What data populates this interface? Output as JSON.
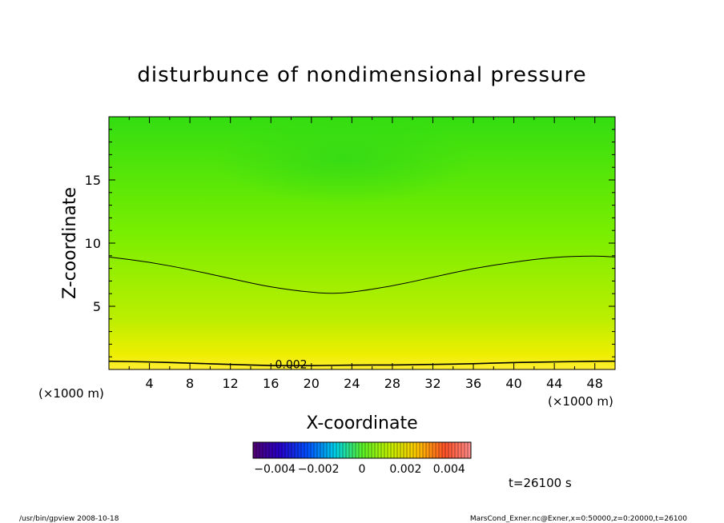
{
  "chart_data": {
    "type": "heatmap",
    "title": "disturbunce of nondimensional pressure",
    "xlabel": "X-coordinate",
    "ylabel": "Z-coordinate",
    "x_unit_left": "(×1000 m)",
    "x_unit_right": "(×1000 m)",
    "xlim": [
      0,
      50
    ],
    "ylim": [
      0,
      20
    ],
    "x_ticks": [
      4,
      8,
      12,
      16,
      20,
      24,
      28,
      32,
      36,
      40,
      44,
      48
    ],
    "x_tick_labels": [
      "4",
      "8",
      "12",
      "16",
      "20",
      "24",
      "28",
      "32",
      "36",
      "40",
      "44",
      "48"
    ],
    "y_ticks": [
      5,
      10,
      15
    ],
    "y_tick_labels": [
      "5",
      "10",
      "15"
    ],
    "contours": [
      {
        "label": "",
        "x": [
          0,
          4,
          8,
          12,
          16,
          20,
          22,
          24,
          28,
          32,
          36,
          40,
          44,
          48,
          50
        ],
        "z": [
          8.9,
          8.5,
          7.9,
          7.2,
          6.5,
          6.1,
          6.0,
          6.1,
          6.6,
          7.3,
          8.0,
          8.5,
          8.9,
          9.0,
          8.9
        ]
      },
      {
        "label": "0.002",
        "x": [
          0,
          4,
          8,
          12,
          16,
          20,
          24,
          28,
          32,
          36,
          40,
          44,
          48,
          50
        ],
        "z": [
          0.65,
          0.6,
          0.5,
          0.4,
          0.3,
          0.3,
          0.35,
          0.35,
          0.4,
          0.45,
          0.55,
          0.6,
          0.65,
          0.65
        ]
      }
    ],
    "colorbar": {
      "range": [
        -0.005,
        0.005
      ],
      "tick_values": [
        -0.004,
        -0.002,
        0,
        0.002,
        0.004
      ],
      "tick_labels": [
        "−0.004",
        "−0.002",
        "0",
        "0.002",
        "0.004"
      ]
    },
    "time_label": "t=26100 s",
    "footer_left": "/usr/bin/gpview   2008-10-18",
    "footer_right": "MarsCond_Exner.nc@Exner,x=0:50000,z=0:20000,t=26100"
  },
  "colors": {
    "top": "#33dd11",
    "middle": "#77ee00",
    "low": "#bbee00",
    "bottom": "#eeee00",
    "ground": "#ffee33"
  }
}
